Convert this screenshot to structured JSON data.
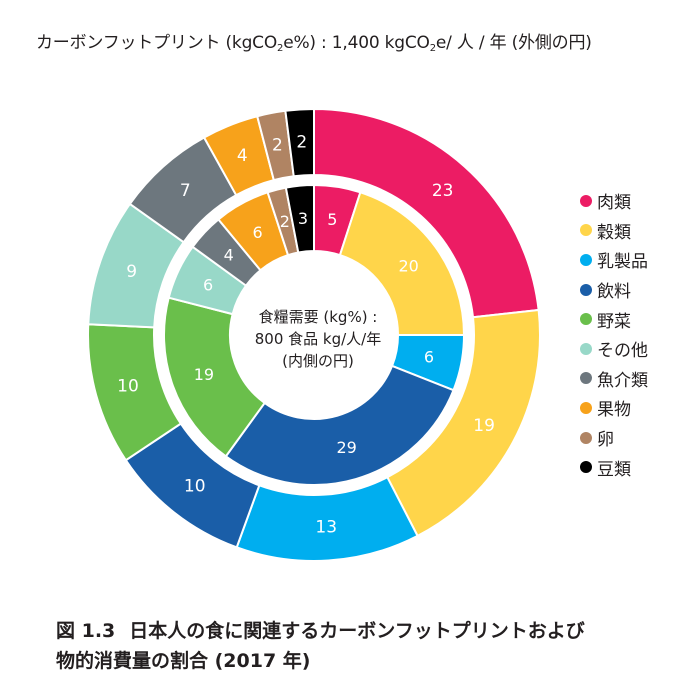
{
  "title": {
    "prefix": "カーボンフットプリント (kgCO",
    "sub1": "2",
    "middle": "e%) : 1,400 kgCO",
    "sub2": "2",
    "suffix": "e/ 人 / 年 (外側の円)"
  },
  "caption": {
    "figure_number": "図 1.3",
    "line1": "日本人の食に関連するカーボンフットプリントおよび",
    "line2": "物的消費量の割合 (2017 年)"
  },
  "chart_data": {
    "type": "pie",
    "subtype": "nested-donut",
    "categories": [
      "肉類",
      "穀類",
      "乳製品",
      "飲料",
      "野菜",
      "その他",
      "魚介類",
      "果物",
      "卵",
      "豆類"
    ],
    "colors": [
      "#ec1c64",
      "#ffd54a",
      "#00aeef",
      "#1a5ea8",
      "#6abf4b",
      "#98d8c8",
      "#6d777e",
      "#f7a21b",
      "#b08463",
      "#000000"
    ],
    "series": [
      {
        "name": "カーボンフットプリント (kgCO2e%) : 1,400 kgCO2e/ 人 / 年 (外側の円)",
        "ring": "outer",
        "values": [
          23,
          19,
          13,
          10,
          10,
          9,
          7,
          4,
          2,
          2
        ]
      },
      {
        "name": "食糧需要 (kg%) : 800 食品 kg/人/年 (内側の円)",
        "ring": "inner",
        "values": [
          5,
          20,
          6,
          29,
          19,
          6,
          4,
          6,
          2,
          3
        ]
      }
    ],
    "center_label": [
      "食糧需要 (kg%) :",
      "800 食品 kg/人/年",
      "(内側の円)"
    ],
    "legend_position": "right"
  }
}
